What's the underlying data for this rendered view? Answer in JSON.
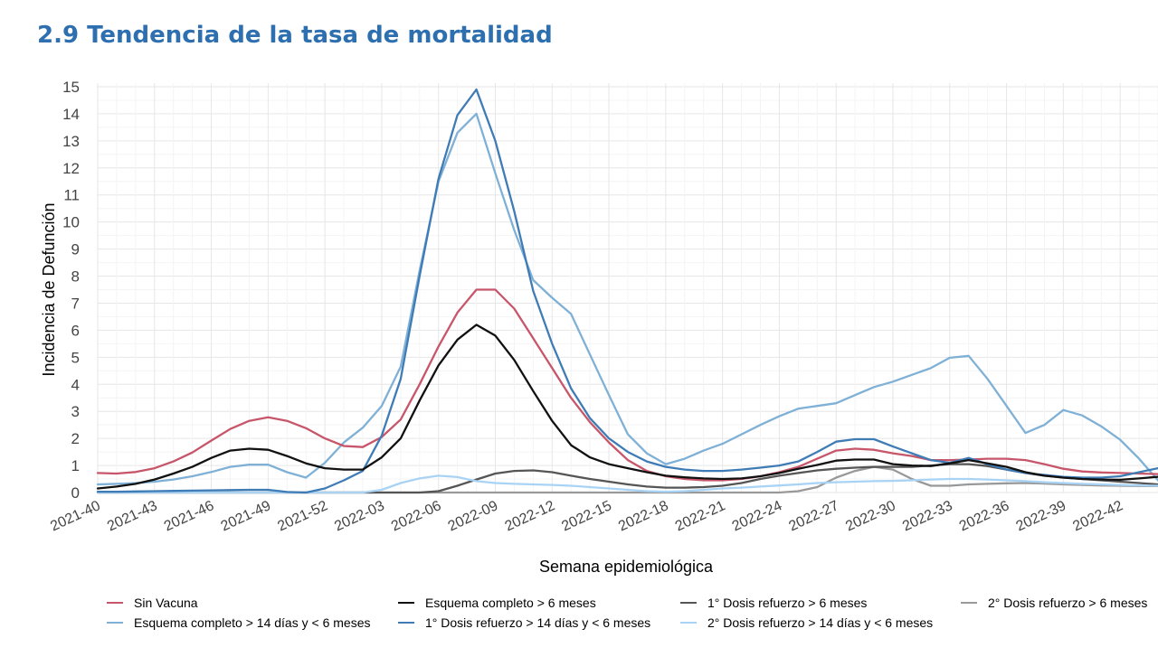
{
  "title": "2.9 Tendencia de la tasa de mortalidad",
  "chart_data": {
    "type": "line",
    "xlabel": "Semana epidemiológica",
    "ylabel": "Incidencia de Defunción",
    "ylim": [
      0,
      15
    ],
    "yticks": [
      0,
      1,
      2,
      3,
      4,
      5,
      6,
      7,
      8,
      9,
      10,
      11,
      12,
      13,
      14,
      15
    ],
    "grid": true,
    "legend_position": "bottom",
    "x_tick_labels": [
      "2021-40",
      "2021-43",
      "2021-46",
      "2021-49",
      "2021-52",
      "2022-03",
      "2022-06",
      "2022-09",
      "2022-12",
      "2022-15",
      "2022-18",
      "2022-21",
      "2022-24",
      "2022-27",
      "2022-30",
      "2022-33",
      "2022-36",
      "2022-39",
      "2022-42"
    ],
    "x": [
      "2021-40",
      "2021-41",
      "2021-42",
      "2021-43",
      "2021-44",
      "2021-45",
      "2021-46",
      "2021-47",
      "2021-48",
      "2021-49",
      "2021-50",
      "2021-51",
      "2021-52",
      "2022-01",
      "2022-02",
      "2022-03",
      "2022-04",
      "2022-05",
      "2022-06",
      "2022-07",
      "2022-08",
      "2022-09",
      "2022-10",
      "2022-11",
      "2022-12",
      "2022-13",
      "2022-14",
      "2022-15",
      "2022-16",
      "2022-17",
      "2022-18",
      "2022-19",
      "2022-20",
      "2022-21",
      "2022-22",
      "2022-23",
      "2022-24",
      "2022-25",
      "2022-26",
      "2022-27",
      "2022-28",
      "2022-29",
      "2022-30",
      "2022-31",
      "2022-32",
      "2022-33",
      "2022-34",
      "2022-35",
      "2022-36",
      "2022-37",
      "2022-38",
      "2022-39",
      "2022-40",
      "2022-41",
      "2022-42",
      "2022-43",
      "2022-44"
    ],
    "series": [
      {
        "name": "Sin Vacuna",
        "color": "#c8566a",
        "values": [
          0.72,
          0.7,
          0.76,
          0.9,
          1.15,
          1.48,
          1.92,
          2.35,
          2.65,
          2.78,
          2.65,
          2.38,
          2.0,
          1.72,
          1.68,
          2.05,
          2.7,
          4.0,
          5.4,
          6.65,
          7.5,
          7.5,
          6.8,
          5.7,
          4.6,
          3.5,
          2.6,
          1.85,
          1.2,
          0.8,
          0.6,
          0.5,
          0.45,
          0.45,
          0.5,
          0.6,
          0.75,
          0.95,
          1.25,
          1.55,
          1.62,
          1.58,
          1.45,
          1.35,
          1.2,
          1.2,
          1.22,
          1.25,
          1.25,
          1.2,
          1.05,
          0.88,
          0.78,
          0.74,
          0.72,
          0.7,
          0.68
        ]
      },
      {
        "name": "Esquema completo > 14 días y < 6 meses",
        "color": "#7fb0d6",
        "values": [
          0.3,
          0.32,
          0.35,
          0.4,
          0.48,
          0.6,
          0.76,
          0.95,
          1.03,
          1.03,
          0.75,
          0.55,
          1.1,
          1.85,
          2.4,
          3.2,
          4.65,
          8.2,
          11.5,
          13.3,
          14.0,
          11.8,
          9.7,
          7.85,
          7.2,
          6.6,
          5.1,
          3.6,
          2.15,
          1.45,
          1.05,
          1.25,
          1.55,
          1.8,
          2.15,
          2.5,
          2.82,
          3.1,
          3.2,
          3.3,
          3.6,
          3.9,
          4.1,
          4.35,
          4.6,
          4.98,
          5.05,
          4.2,
          3.2,
          2.2,
          2.5,
          3.05,
          2.85,
          2.45,
          1.95,
          1.25,
          0.45
        ]
      },
      {
        "name": "Esquema completo > 6 meses",
        "color": "#111111",
        "values": [
          0.15,
          0.22,
          0.32,
          0.48,
          0.7,
          0.95,
          1.28,
          1.55,
          1.62,
          1.58,
          1.35,
          1.08,
          0.9,
          0.85,
          0.85,
          1.3,
          2.0,
          3.4,
          4.7,
          5.65,
          6.2,
          5.8,
          4.9,
          3.75,
          2.65,
          1.75,
          1.3,
          1.05,
          0.9,
          0.75,
          0.62,
          0.56,
          0.52,
          0.5,
          0.52,
          0.6,
          0.72,
          0.88,
          1.02,
          1.18,
          1.22,
          1.22,
          1.05,
          1.0,
          0.98,
          1.08,
          1.2,
          1.08,
          0.95,
          0.75,
          0.62,
          0.55,
          0.5,
          0.48,
          0.47,
          0.52,
          0.58
        ]
      },
      {
        "name": "1° Dosis refuerzo > 14 días y < 6 meses",
        "color": "#3f7cb5",
        "values": [
          0.03,
          0.03,
          0.04,
          0.05,
          0.06,
          0.07,
          0.08,
          0.09,
          0.1,
          0.1,
          0.02,
          0.0,
          0.15,
          0.45,
          0.8,
          2.1,
          4.2,
          8.0,
          11.6,
          13.95,
          14.9,
          13.0,
          10.4,
          7.45,
          5.5,
          3.85,
          2.75,
          2.0,
          1.5,
          1.15,
          0.95,
          0.85,
          0.8,
          0.8,
          0.85,
          0.92,
          1.0,
          1.15,
          1.5,
          1.88,
          1.97,
          1.97,
          1.7,
          1.45,
          1.2,
          1.1,
          1.28,
          1.05,
          0.85,
          0.72,
          0.65,
          0.58,
          0.55,
          0.55,
          0.6,
          0.75,
          0.9
        ]
      },
      {
        "name": "1° Dosis refuerzo > 6 meses",
        "color": "#555555",
        "values": [
          0,
          0,
          0,
          0,
          0,
          0,
          0,
          0,
          0,
          0,
          0,
          0,
          0,
          0,
          0,
          0,
          0,
          0,
          0.05,
          0.25,
          0.48,
          0.7,
          0.8,
          0.82,
          0.75,
          0.62,
          0.5,
          0.4,
          0.3,
          0.22,
          0.18,
          0.18,
          0.2,
          0.25,
          0.35,
          0.5,
          0.62,
          0.72,
          0.82,
          0.88,
          0.92,
          0.95,
          0.95,
          0.95,
          1.0,
          1.05,
          1.05,
          0.98,
          0.85,
          0.72,
          0.62,
          0.55,
          0.5,
          0.45,
          0.4,
          0.35,
          0.3
        ]
      },
      {
        "name": "2° Dosis refuerzo > 6 meses",
        "color": "#999999",
        "values": [
          0,
          0,
          0,
          0,
          0,
          0,
          0,
          0,
          0,
          0,
          0,
          0,
          0,
          0,
          0,
          0,
          0,
          0,
          0,
          0,
          0,
          0,
          0,
          0,
          0,
          0,
          0,
          0,
          0,
          0,
          0,
          0,
          0,
          0,
          0,
          0,
          0,
          0.05,
          0.2,
          0.55,
          0.8,
          0.95,
          0.85,
          0.5,
          0.25,
          0.25,
          0.3,
          0.32,
          0.34,
          0.35,
          0.33,
          0.3,
          0.28,
          0.26,
          0.25,
          0.24,
          0.24
        ]
      },
      {
        "name": "2° Dosis refuerzo > 14 días y < 6 meses",
        "color": "#a9d3f5",
        "values": [
          0,
          0,
          0,
          0,
          0,
          0,
          0,
          0,
          0,
          0,
          0,
          0,
          0,
          0,
          0,
          0.1,
          0.35,
          0.52,
          0.62,
          0.57,
          0.42,
          0.35,
          0.32,
          0.3,
          0.28,
          0.25,
          0.2,
          0.15,
          0.1,
          0.05,
          0.03,
          0.05,
          0.1,
          0.15,
          0.18,
          0.22,
          0.26,
          0.3,
          0.35,
          0.38,
          0.4,
          0.42,
          0.43,
          0.45,
          0.48,
          0.5,
          0.5,
          0.48,
          0.45,
          0.42,
          0.38,
          0.35,
          0.32,
          0.3,
          0.28,
          0.26,
          0.25
        ]
      }
    ]
  }
}
